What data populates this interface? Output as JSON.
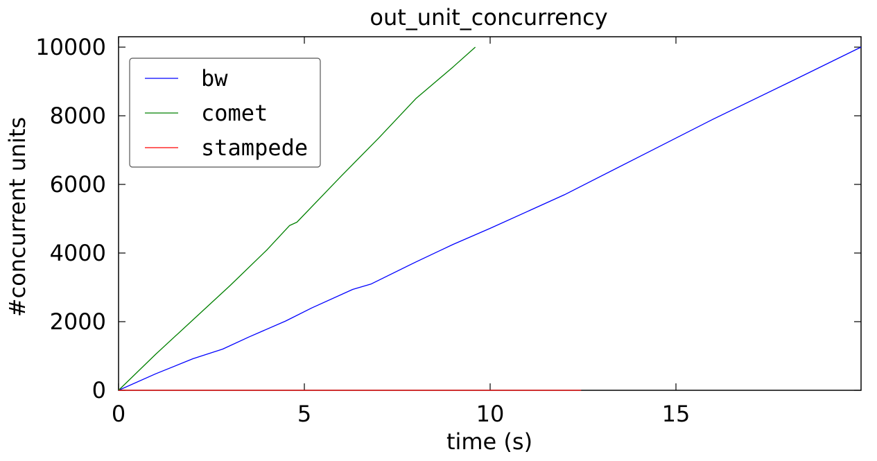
{
  "chart_data": {
    "type": "line",
    "title": "out_unit_concurrency",
    "xlabel": "time (s)",
    "ylabel": "#concurrent units",
    "xlim": [
      0,
      20
    ],
    "ylim": [
      0,
      10000
    ],
    "xticks": [
      "0",
      "5",
      "10",
      "15"
    ],
    "yticks": [
      "0",
      "2000",
      "4000",
      "6000",
      "8000",
      "10000"
    ],
    "grid": false,
    "legend_position": "top-left",
    "series": [
      {
        "name": "bw",
        "color": "#0000ff",
        "x": [
          0,
          1,
          2,
          2.8,
          3.5,
          4.5,
          5.2,
          6.3,
          6.8,
          8,
          9,
          10,
          12,
          14,
          16,
          18,
          19.98
        ],
        "y": [
          0,
          480,
          920,
          1200,
          1550,
          2020,
          2400,
          2940,
          3100,
          3740,
          4250,
          4720,
          5700,
          6800,
          7900,
          8950,
          10000
        ]
      },
      {
        "name": "comet",
        "color": "#008000",
        "x": [
          0,
          1,
          2,
          3,
          4,
          4.6,
          4.8,
          6,
          7,
          8,
          9,
          9.6
        ],
        "y": [
          0,
          1050,
          2050,
          3050,
          4100,
          4800,
          4900,
          6250,
          7350,
          8500,
          9420,
          10000
        ]
      },
      {
        "name": "stampede",
        "color": "#ff0000",
        "x": [
          0,
          12.45
        ],
        "y": [
          0,
          0
        ]
      }
    ]
  }
}
